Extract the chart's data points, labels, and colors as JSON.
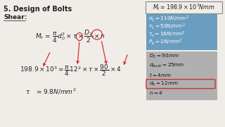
{
  "bg_color": "#f0ede8",
  "title": "5. Design of Bolts",
  "subtitle": "Shear:",
  "top_box_text": "$M_t = 198.9 \\times 10^3 Nmm$",
  "top_box_bg": "#f0ede8",
  "top_box_border": "#888888",
  "blue_box_bg": "#6a9ec0",
  "blue_box_lines": [
    "$\\sigma_1 = 110N/mm^2$",
    "$\\tau_1 = 50N/mm^2$",
    "$\\tau_s = 18N/mm^2$",
    "$P_b = 2N/mm^2$"
  ],
  "gray_box_bg": "#b0b0b0",
  "gray_box_lines": [
    "$D_2=90mm$",
    "$d_{bush}=25mm$",
    "$t=4mm$",
    "$d_b =12mm$",
    "$n=4$"
  ],
  "highlight_line_idx": 3,
  "highlight_color": "#cc3333",
  "arrow_color": "#cc3333",
  "circle_color": "#cc3333"
}
